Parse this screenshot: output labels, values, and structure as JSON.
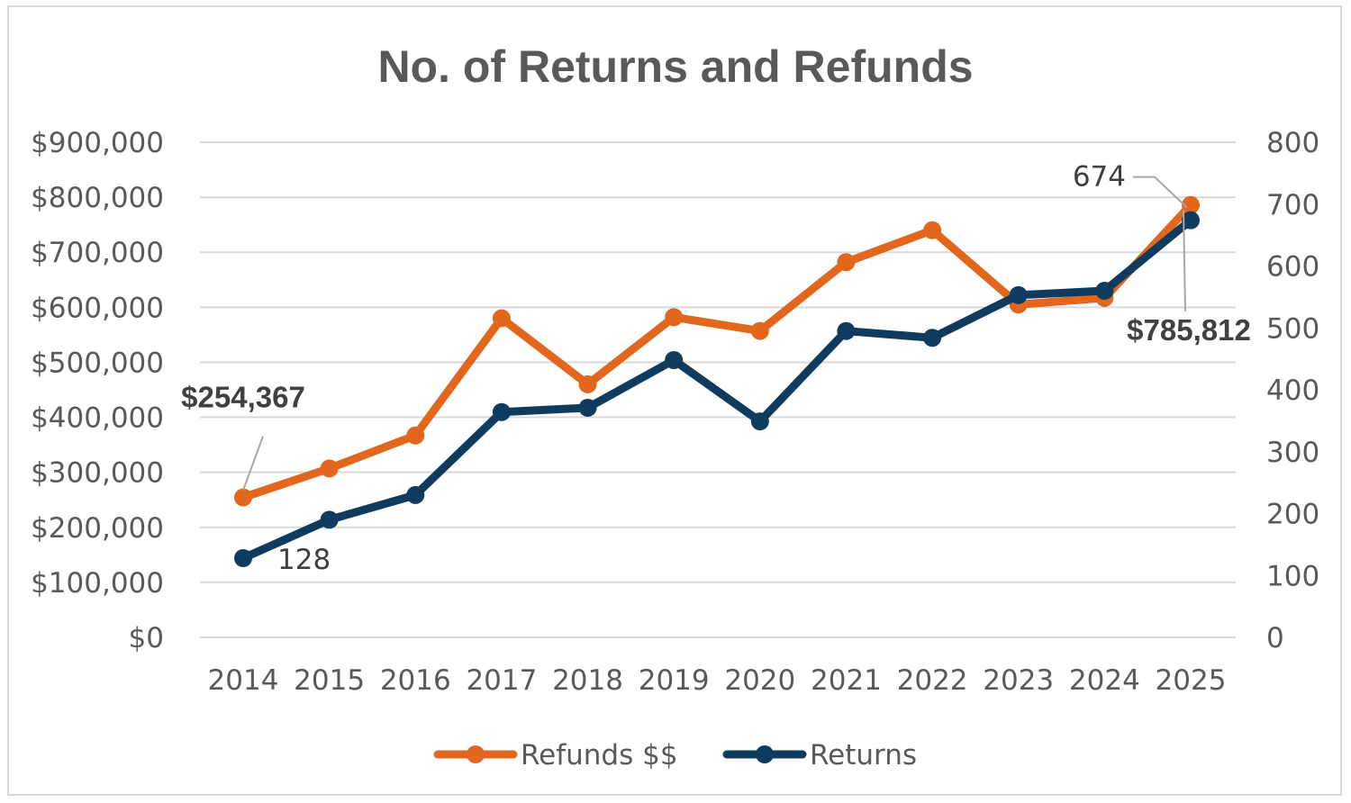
{
  "chart_data": {
    "type": "line",
    "title": "No. of Returns and Refunds",
    "categories": [
      "2014",
      "2015",
      "2016",
      "2017",
      "2018",
      "2019",
      "2020",
      "2021",
      "2022",
      "2023",
      "2024",
      "2025"
    ],
    "y_left": {
      "range": [
        0,
        900000
      ],
      "ticks": [
        0,
        100000,
        200000,
        300000,
        400000,
        500000,
        600000,
        700000,
        800000,
        900000
      ],
      "tick_labels": [
        "$0",
        "$100,000",
        "$200,000",
        "$300,000",
        "$400,000",
        "$500,000",
        "$600,000",
        "$700,000",
        "$800,000",
        "$900,000"
      ]
    },
    "y_right": {
      "range": [
        0,
        800
      ],
      "ticks": [
        0,
        100,
        200,
        300,
        400,
        500,
        600,
        700,
        800
      ],
      "tick_labels": [
        "0",
        "100",
        "200",
        "300",
        "400",
        "500",
        "600",
        "700",
        "800"
      ]
    },
    "series": [
      {
        "name": "Refunds $$",
        "axis": "left",
        "color": "#E2661B",
        "values": [
          254367,
          307000,
          367000,
          580000,
          460000,
          582000,
          557000,
          682000,
          740000,
          605000,
          617000,
          785812
        ]
      },
      {
        "name": "Returns",
        "axis": "right",
        "color": "#0E3B5E",
        "values": [
          128,
          190,
          230,
          364,
          371,
          448,
          349,
          495,
          484,
          553,
          560,
          674
        ]
      }
    ],
    "data_labels": [
      {
        "series": 0,
        "index": 0,
        "text": "$254,367"
      },
      {
        "series": 1,
        "index": 0,
        "text": "128"
      },
      {
        "series": 1,
        "index": 11,
        "text": "674"
      },
      {
        "series": 0,
        "index": 11,
        "text": "$785,812"
      }
    ],
    "grid": true,
    "legend": "bottom"
  }
}
